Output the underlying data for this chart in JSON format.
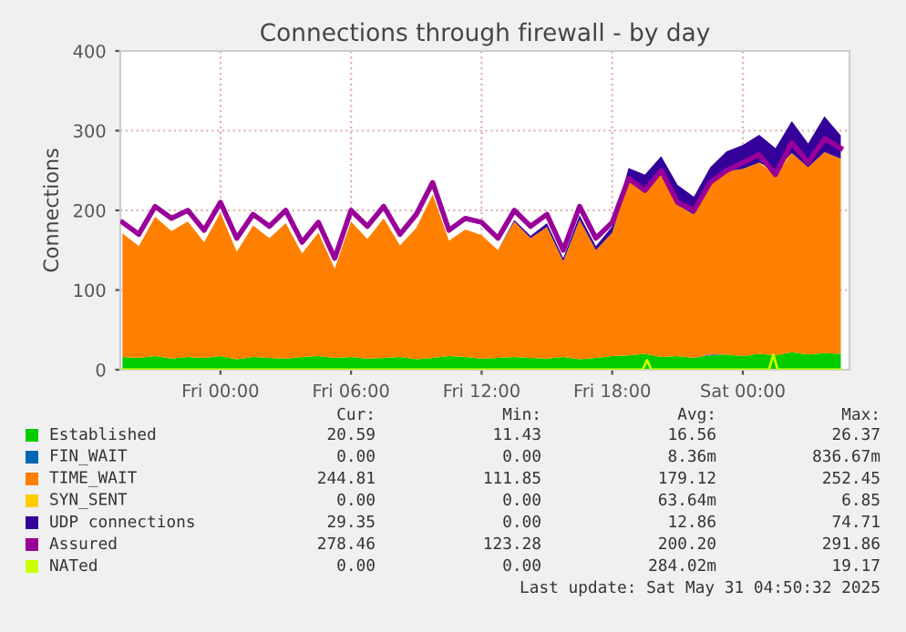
{
  "chart_data": {
    "type": "area",
    "title": "Connections through firewall - by day",
    "ylabel": "Connections",
    "stacked": true,
    "x": [
      "2025-05-29T19:30",
      "2025-05-29T20:15",
      "2025-05-29T21:00",
      "2025-05-29T21:45",
      "2025-05-29T22:30",
      "2025-05-29T23:15",
      "2025-05-30T00:00",
      "2025-05-30T00:45",
      "2025-05-30T01:30",
      "2025-05-30T02:15",
      "2025-05-30T03:00",
      "2025-05-30T03:45",
      "2025-05-30T04:30",
      "2025-05-30T05:15",
      "2025-05-30T06:00",
      "2025-05-30T06:45",
      "2025-05-30T07:30",
      "2025-05-30T08:15",
      "2025-05-30T09:00",
      "2025-05-30T09:45",
      "2025-05-30T10:30",
      "2025-05-30T11:15",
      "2025-05-30T12:00",
      "2025-05-30T12:45",
      "2025-05-30T13:30",
      "2025-05-30T14:15",
      "2025-05-30T15:00",
      "2025-05-30T15:45",
      "2025-05-30T16:30",
      "2025-05-30T17:15",
      "2025-05-30T18:00",
      "2025-05-30T18:45",
      "2025-05-30T19:30",
      "2025-05-30T20:15",
      "2025-05-30T21:00",
      "2025-05-30T21:45",
      "2025-05-30T22:30",
      "2025-05-30T23:15",
      "2025-05-31T00:00",
      "2025-05-31T00:45",
      "2025-05-31T01:30",
      "2025-05-31T02:15",
      "2025-05-31T03:00",
      "2025-05-31T03:45",
      "2025-05-31T04:30"
    ],
    "series": [
      {
        "name": "Established",
        "color": "#00cc00",
        "values": [
          16,
          15,
          17,
          14,
          16,
          15,
          17,
          13,
          16,
          15,
          14,
          16,
          17,
          15,
          16,
          14,
          15,
          16,
          13,
          15,
          17,
          16,
          14,
          15,
          16,
          15,
          14,
          16,
          13,
          15,
          17,
          18,
          20,
          16,
          17,
          15,
          18,
          19,
          17,
          20,
          18,
          22,
          19,
          21,
          20
        ]
      },
      {
        "name": "FIN_WAIT",
        "color": "#0066b3",
        "values": [
          0,
          0,
          0,
          0,
          0,
          0,
          0,
          0,
          0,
          0,
          0,
          0,
          0,
          0,
          0,
          0,
          0,
          0,
          0,
          0,
          0,
          0,
          0,
          0,
          0,
          0,
          0,
          0,
          0,
          0,
          0,
          0,
          0,
          0,
          0,
          0,
          1,
          0,
          0,
          0,
          0,
          0,
          0,
          0,
          0
        ]
      },
      {
        "name": "TIME_WAIT",
        "color": "#ff8000",
        "values": [
          155,
          140,
          175,
          160,
          170,
          145,
          180,
          135,
          165,
          150,
          170,
          130,
          155,
          112,
          170,
          150,
          175,
          140,
          165,
          205,
          145,
          160,
          155,
          135,
          170,
          150,
          165,
          120,
          175,
          135,
          155,
          220,
          205,
          230,
          190,
          180,
          215,
          230,
          235,
          240,
          225,
          250,
          235,
          252,
          245
        ]
      },
      {
        "name": "SYN_SENT",
        "color": "#ffcc00",
        "values": [
          0,
          0,
          0,
          0,
          0,
          0,
          0,
          0,
          0,
          0,
          0,
          0,
          0,
          0,
          0,
          0,
          0,
          0,
          0,
          0,
          0,
          0,
          0,
          0,
          0,
          0,
          0,
          0,
          0,
          0,
          0,
          0,
          0,
          4,
          0,
          0,
          0,
          0,
          0,
          0,
          7,
          0,
          0,
          0,
          0
        ]
      },
      {
        "name": "UDP connections",
        "color": "#330099",
        "values": [
          0,
          0,
          0,
          0,
          0,
          0,
          0,
          0,
          0,
          0,
          0,
          0,
          0,
          0,
          0,
          0,
          0,
          0,
          0,
          0,
          0,
          0,
          0,
          0,
          2,
          3,
          5,
          4,
          6,
          5,
          8,
          15,
          20,
          18,
          25,
          22,
          20,
          25,
          30,
          35,
          28,
          40,
          30,
          45,
          29
        ]
      },
      {
        "name": "Assured",
        "color": "#990099",
        "type": "line",
        "values": [
          185,
          170,
          205,
          190,
          200,
          175,
          210,
          165,
          195,
          180,
          200,
          160,
          185,
          140,
          200,
          180,
          205,
          170,
          195,
          235,
          175,
          190,
          185,
          165,
          200,
          180,
          195,
          150,
          205,
          165,
          185,
          240,
          225,
          250,
          210,
          200,
          235,
          250,
          260,
          270,
          245,
          285,
          260,
          290,
          278
        ]
      },
      {
        "name": "NATed",
        "color": "#ccff00",
        "type": "line",
        "x": [
          "2025-05-29T19:30",
          "2025-05-30T19:24",
          "2025-05-30T19:36",
          "2025-05-30T19:48",
          "2025-05-31T01:12",
          "2025-05-31T01:24",
          "2025-05-31T01:36",
          "2025-05-31T04:30"
        ],
        "values": [
          0,
          0,
          12,
          0,
          0,
          19,
          0,
          0
        ]
      }
    ],
    "xlim": [
      "2025-05-29T19:24",
      "2025-05-31T04:54"
    ],
    "xticks": [
      {
        "value": "2025-05-30T00:00",
        "label": "Fri 00:00"
      },
      {
        "value": "2025-05-30T06:00",
        "label": "Fri 06:00"
      },
      {
        "value": "2025-05-30T12:00",
        "label": "Fri 12:00"
      },
      {
        "value": "2025-05-30T18:00",
        "label": "Fri 18:00"
      },
      {
        "value": "2025-05-31T00:00",
        "label": "Sat 00:00"
      }
    ],
    "ylim": [
      0,
      400
    ],
    "yticks": [
      0,
      100,
      200,
      300,
      400
    ],
    "grid": true,
    "legend": "bottom",
    "annotations": [
      "Cur:",
      "Min:",
      "Avg:",
      "Max:",
      "20.59",
      "11.43",
      "16.56",
      "26.37",
      "0.00",
      "0.00",
      "8.36m",
      "836.67m",
      "244.81",
      "111.85",
      "179.12",
      "252.45",
      "0.00",
      "0.00",
      "63.64m",
      "6.85",
      "29.35",
      "0.00",
      "12.86",
      "74.71",
      "278.46",
      "123.28",
      "200.20",
      "291.86",
      "0.00",
      "0.00",
      "284.02m",
      "19.17",
      "Last update: Sat May 31 04:50:32 2025"
    ]
  }
}
